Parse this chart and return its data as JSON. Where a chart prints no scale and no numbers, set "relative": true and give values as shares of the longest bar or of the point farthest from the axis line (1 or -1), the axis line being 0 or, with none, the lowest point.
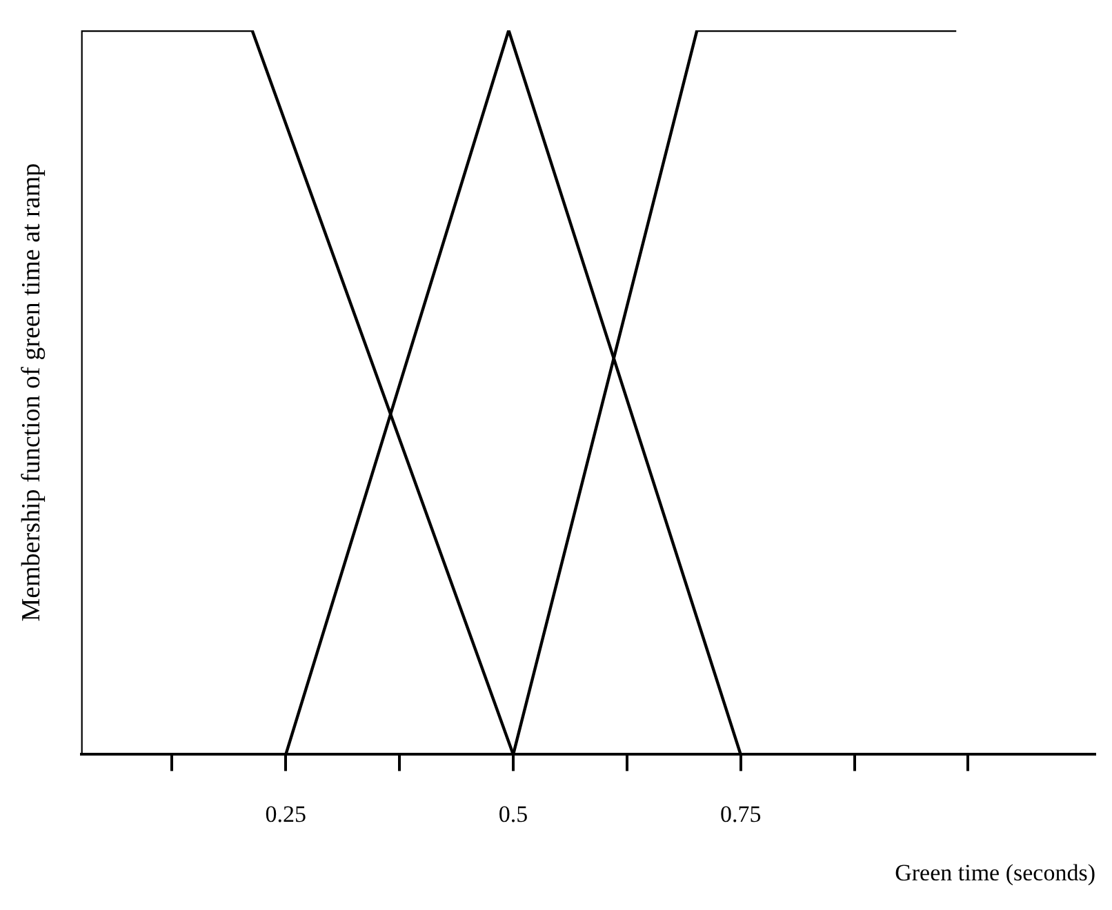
{
  "chart_data": {
    "type": "line",
    "relative": true,
    "xlabel": "Green time (seconds)",
    "ylabel": "Membership function of green time at ramp",
    "xlim": [
      0.025,
      1.14
    ],
    "xticks": [
      {
        "value": 0.125,
        "label": null
      },
      0.25,
      {
        "value": 0.375,
        "label": null
      },
      0.5,
      {
        "value": 0.625,
        "label": null
      },
      0.75,
      {
        "value": 0.875,
        "label": null
      },
      {
        "value": 1,
        "label": null
      }
    ],
    "series": [
      {
        "color": "#000000",
        "x": [
          0.025,
          0.025,
          0.213,
          0.5
        ],
        "values": [
          0,
          1,
          1,
          0
        ]
      },
      {
        "color": "#000000",
        "x": [
          0.25,
          0.495,
          0.75
        ],
        "values": [
          0,
          1,
          0
        ]
      },
      {
        "color": "#000000",
        "x": [
          0.5,
          0.702,
          0.987
        ],
        "values": [
          0,
          1,
          1
        ]
      }
    ],
    "marker": "none",
    "line_style": "solid",
    "legend": false,
    "grid": false
  }
}
